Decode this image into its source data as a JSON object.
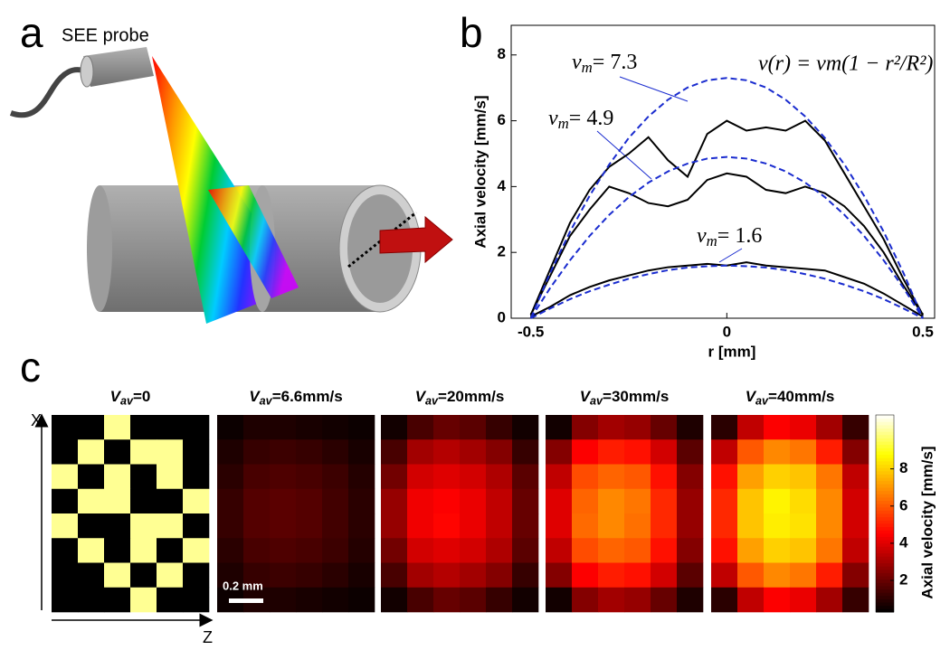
{
  "figure": {
    "panel_labels": [
      "a",
      "b",
      "c"
    ],
    "probe_label": "SEE probe",
    "axis_x": "X",
    "axis_z": "Z",
    "scale_bar": "0.2 mm"
  },
  "chart_data": [
    {
      "type": "line",
      "xlabel": "r [mm]",
      "ylabel": "Axial velocity [mm/s]",
      "formula": "v(r) = vm(1 − r²/R²)",
      "annotations": [
        {
          "symbol": "v",
          "subscript": "m",
          "text": "= 7.3"
        },
        {
          "symbol": "v",
          "subscript": "m",
          "text": "= 4.9"
        },
        {
          "symbol": "v",
          "subscript": "m",
          "text": "= 1.6"
        }
      ],
      "xlim": [
        -0.55,
        0.53
      ],
      "ylim": [
        0,
        8.9
      ],
      "xticks": [
        -0.5,
        0,
        0.5
      ],
      "yticks": [
        0,
        2,
        4,
        6,
        8
      ],
      "x": [
        -0.5,
        -0.45,
        -0.4,
        -0.35,
        -0.3,
        -0.25,
        -0.2,
        -0.15,
        -0.1,
        -0.05,
        0,
        0.05,
        0.1,
        0.15,
        0.2,
        0.25,
        0.3,
        0.35,
        0.4,
        0.45,
        0.5
      ],
      "series": [
        {
          "color": "#000000",
          "style": "solid",
          "values": [
            0.1,
            1.5,
            2.9,
            3.9,
            4.6,
            5.0,
            5.5,
            4.8,
            4.3,
            5.6,
            6.0,
            5.7,
            5.8,
            5.7,
            6.0,
            5.4,
            4.4,
            3.4,
            2.4,
            1.2,
            0.1
          ]
        },
        {
          "color": "#000000",
          "style": "solid",
          "values": [
            0.1,
            1.3,
            2.5,
            3.3,
            4.0,
            3.8,
            3.5,
            3.4,
            3.6,
            4.2,
            4.4,
            4.3,
            3.9,
            3.8,
            4.0,
            3.8,
            3.4,
            2.8,
            2.0,
            1.0,
            0.1
          ]
        },
        {
          "color": "#000000",
          "style": "solid",
          "values": [
            0.05,
            0.35,
            0.7,
            0.95,
            1.15,
            1.3,
            1.45,
            1.55,
            1.6,
            1.65,
            1.6,
            1.7,
            1.6,
            1.55,
            1.5,
            1.45,
            1.25,
            1.05,
            0.75,
            0.4,
            0.05
          ]
        },
        {
          "color": "#1a2ccf",
          "style": "dashed",
          "values": [
            0,
            1.39,
            2.63,
            3.72,
            4.67,
            5.48,
            6.13,
            6.64,
            7.01,
            7.23,
            7.3,
            7.23,
            7.01,
            6.64,
            6.13,
            5.48,
            4.67,
            3.72,
            2.63,
            1.39,
            0
          ]
        },
        {
          "color": "#1a2ccf",
          "style": "dashed",
          "values": [
            0,
            0.93,
            1.76,
            2.5,
            3.14,
            3.68,
            4.12,
            4.46,
            4.7,
            4.85,
            4.9,
            4.85,
            4.7,
            4.46,
            4.12,
            3.68,
            3.14,
            2.5,
            1.76,
            0.93,
            0
          ]
        },
        {
          "color": "#1a2ccf",
          "style": "dashed",
          "values": [
            0,
            0.3,
            0.58,
            0.82,
            1.02,
            1.2,
            1.34,
            1.46,
            1.54,
            1.58,
            1.6,
            1.58,
            1.54,
            1.46,
            1.34,
            1.2,
            1.02,
            0.82,
            0.58,
            0.3,
            0
          ]
        }
      ]
    },
    {
      "type": "heatmap",
      "colorbar_label": "Axial velocity [mm/s]",
      "clim": [
        0.3,
        10.9
      ],
      "cticks": [
        2,
        4,
        6,
        8
      ],
      "panels": [
        {
          "title": {
            "symbol": "V",
            "subscript": "av",
            "text": "=0"
          },
          "values": [
            [
              0,
              0,
              10,
              0,
              0,
              0
            ],
            [
              0,
              10,
              0,
              10,
              10,
              0
            ],
            [
              10,
              0,
              10,
              0,
              10,
              0
            ],
            [
              0,
              10,
              10,
              0,
              0,
              10
            ],
            [
              10,
              0,
              0,
              10,
              10,
              0
            ],
            [
              0,
              10,
              0,
              10,
              0,
              10
            ],
            [
              0,
              0,
              10,
              0,
              10,
              0
            ],
            [
              0,
              0,
              0,
              10,
              0,
              0
            ]
          ]
        },
        {
          "title": {
            "symbol": "V",
            "subscript": "av",
            "text": "=6.6mm/s"
          },
          "values": [
            [
              0.5,
              0.8,
              0.8,
              0.7,
              0.6,
              0.5
            ],
            [
              0.8,
              1.2,
              1.3,
              1.2,
              1.0,
              0.7
            ],
            [
              1.0,
              1.5,
              1.6,
              1.5,
              1.3,
              0.9
            ],
            [
              1.2,
              1.7,
              1.8,
              1.7,
              1.4,
              1.0
            ],
            [
              1.2,
              1.7,
              1.8,
              1.7,
              1.4,
              1.0
            ],
            [
              1.0,
              1.5,
              1.6,
              1.5,
              1.3,
              0.9
            ],
            [
              0.8,
              1.2,
              1.3,
              1.2,
              1.0,
              0.7
            ],
            [
              0.5,
              0.8,
              0.8,
              0.7,
              0.6,
              0.5
            ]
          ]
        },
        {
          "title": {
            "symbol": "V",
            "subscript": "av",
            "text": "=20mm/s"
          },
          "values": [
            [
              0.6,
              1.5,
              2.0,
              1.8,
              1.2,
              0.6
            ],
            [
              1.5,
              3.0,
              3.3,
              3.0,
              2.5,
              1.2
            ],
            [
              2.2,
              3.8,
              4.0,
              3.8,
              3.2,
              1.8
            ],
            [
              2.8,
              4.3,
              4.5,
              4.2,
              3.5,
              2.0
            ],
            [
              2.8,
              4.3,
              4.6,
              4.2,
              3.5,
              2.0
            ],
            [
              2.2,
              3.8,
              4.0,
              3.8,
              3.2,
              1.8
            ],
            [
              1.5,
              3.0,
              3.3,
              3.0,
              2.5,
              1.2
            ],
            [
              0.6,
              1.5,
              2.0,
              1.8,
              1.2,
              0.6
            ]
          ]
        },
        {
          "title": {
            "symbol": "V",
            "subscript": "av",
            "text": "=30mm/s"
          },
          "values": [
            [
              0.6,
              2.5,
              3.0,
              2.8,
              2.0,
              0.8
            ],
            [
              2.5,
              4.5,
              5.0,
              4.8,
              3.8,
              1.8
            ],
            [
              3.5,
              5.8,
              6.2,
              6.0,
              4.8,
              2.5
            ],
            [
              4.0,
              6.2,
              6.8,
              6.5,
              5.2,
              2.8
            ],
            [
              4.0,
              6.3,
              6.8,
              6.4,
              5.2,
              2.8
            ],
            [
              3.5,
              5.8,
              6.2,
              6.0,
              4.8,
              2.5
            ],
            [
              2.5,
              4.5,
              5.0,
              4.8,
              3.8,
              1.8
            ],
            [
              0.6,
              2.5,
              3.0,
              2.8,
              2.0,
              0.8
            ]
          ]
        },
        {
          "title": {
            "symbol": "V",
            "subscript": "av",
            "text": "=40mm/s"
          },
          "values": [
            [
              1.0,
              3.5,
              4.5,
              4.2,
              3.0,
              1.2
            ],
            [
              3.5,
              6.0,
              6.8,
              6.5,
              5.0,
              2.5
            ],
            [
              4.8,
              7.2,
              8.0,
              7.8,
              6.5,
              3.5
            ],
            [
              5.2,
              7.8,
              8.6,
              8.2,
              6.8,
              3.8
            ],
            [
              5.2,
              7.8,
              8.5,
              8.3,
              6.8,
              3.8
            ],
            [
              4.8,
              7.2,
              8.0,
              7.8,
              6.5,
              3.5
            ],
            [
              3.5,
              6.0,
              6.8,
              6.5,
              5.0,
              2.5
            ],
            [
              1.0,
              3.5,
              4.5,
              4.2,
              3.0,
              1.2
            ]
          ]
        }
      ]
    }
  ]
}
